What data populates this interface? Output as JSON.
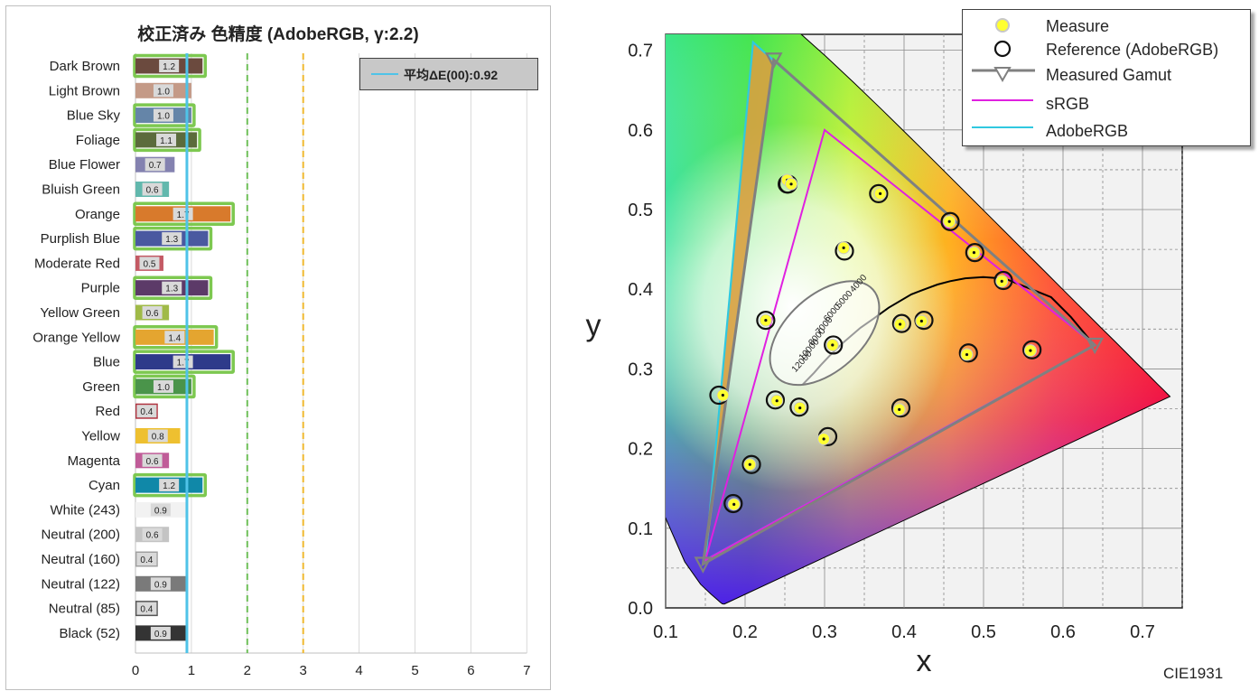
{
  "left_chart": {
    "title": "校正済み 色精度 (AdobeRGB, γ:2.2)",
    "avg_legend_label": "平均ΔE(00):0.92",
    "avg_line_color": "#4fc3e8",
    "threshold_green_color": "#70c05a",
    "threshold_orange_color": "#f0b830",
    "highlight_border_color": "#7dc850"
  },
  "right_chart": {
    "xlabel": "x",
    "ylabel": "y",
    "corner_label": "CIE1931",
    "legend": {
      "measure": "Measure",
      "reference": "Reference (AdobeRGB)",
      "gamut": "Measured Gamut",
      "srgb": "sRGB",
      "adobergb": "AdobeRGB"
    },
    "colors": {
      "srgb": "#e020e0",
      "adobergb": "#30c8e0",
      "gamut": "#808080",
      "measure": "#ffff30"
    },
    "cct_labels": [
      "4000",
      "5000",
      "6000",
      "7000",
      "8000",
      "10000",
      "12000"
    ]
  },
  "chart_data": [
    {
      "type": "bar",
      "title": "校正済み 色精度 (AdobeRGB, γ:2.2)",
      "orientation": "horizontal",
      "categories": [
        "Dark Brown",
        "Light Brown",
        "Blue Sky",
        "Foliage",
        "Blue Flower",
        "Bluish Green",
        "Orange",
        "Purplish Blue",
        "Moderate Red",
        "Purple",
        "Yellow Green",
        "Orange Yellow",
        "Blue",
        "Green",
        "Red",
        "Yellow",
        "Magenta",
        "Cyan",
        "White (243)",
        "Neutral (200)",
        "Neutral (160)",
        "Neutral (122)",
        "Neutral (85)",
        "Black (52)"
      ],
      "values": [
        1.2,
        1.0,
        1.0,
        1.1,
        0.7,
        0.6,
        1.7,
        1.3,
        0.5,
        1.3,
        0.6,
        1.4,
        1.7,
        1.0,
        0.4,
        0.8,
        0.6,
        1.2,
        0.9,
        0.6,
        0.4,
        0.9,
        0.4,
        0.9
      ],
      "bar_colors": [
        "#6b4a3e",
        "#c49a87",
        "#6585a8",
        "#5b6b3c",
        "#8482b0",
        "#62b8ad",
        "#d87a2c",
        "#4a59a0",
        "#c45a64",
        "#5c3a68",
        "#a0ba48",
        "#e4a530",
        "#2e3a8a",
        "#4a944a",
        "#b03440",
        "#eec030",
        "#c05c98",
        "#1088a8",
        "#f2f2f2",
        "#c4c4c4",
        "#a0a0a0",
        "#7a7a7a",
        "#555555",
        "#343434"
      ],
      "highlighted": [
        true,
        false,
        true,
        true,
        false,
        false,
        true,
        true,
        false,
        true,
        false,
        true,
        true,
        true,
        false,
        false,
        false,
        true,
        false,
        false,
        false,
        false,
        false,
        false
      ],
      "average": 0.92,
      "thresholds": [
        2,
        3
      ],
      "xlim": [
        0,
        7
      ],
      "xticks": [
        0,
        1,
        2,
        3,
        4,
        5,
        6,
        7
      ]
    },
    {
      "type": "scatter",
      "title": "",
      "xlabel": "x",
      "ylabel": "y",
      "xlim": [
        0.1,
        0.75
      ],
      "ylim": [
        0.0,
        0.72
      ],
      "xticks": [
        0.1,
        0.2,
        0.3,
        0.4,
        0.5,
        0.6,
        0.7
      ],
      "yticks": [
        0.0,
        0.1,
        0.2,
        0.3,
        0.4,
        0.5,
        0.6,
        0.7
      ],
      "series": [
        {
          "name": "Measure",
          "points": [
            [
              0.253,
              0.537
            ],
            [
              0.324,
              0.452
            ],
            [
              0.172,
              0.267
            ],
            [
              0.186,
              0.13
            ],
            [
              0.206,
              0.18
            ],
            [
              0.299,
              0.212
            ],
            [
              0.24,
              0.26
            ],
            [
              0.226,
              0.361
            ],
            [
              0.31,
              0.33
            ],
            [
              0.395,
              0.356
            ],
            [
              0.422,
              0.36
            ],
            [
              0.394,
              0.249
            ],
            [
              0.269,
              0.251
            ],
            [
              0.258,
              0.532
            ],
            [
              0.37,
              0.52
            ],
            [
              0.457,
              0.485
            ],
            [
              0.488,
              0.446
            ],
            [
              0.523,
              0.41
            ],
            [
              0.479,
              0.318
            ],
            [
              0.559,
              0.323
            ]
          ]
        },
        {
          "name": "Reference (AdobeRGB)",
          "points": [
            [
              0.254,
              0.532
            ],
            [
              0.325,
              0.448
            ],
            [
              0.167,
              0.267
            ],
            [
              0.185,
              0.131
            ],
            [
              0.208,
              0.18
            ],
            [
              0.304,
              0.215
            ],
            [
              0.238,
              0.261
            ],
            [
              0.226,
              0.361
            ],
            [
              0.311,
              0.33
            ],
            [
              0.397,
              0.357
            ],
            [
              0.425,
              0.361
            ],
            [
              0.396,
              0.251
            ],
            [
              0.268,
              0.252
            ],
            [
              0.253,
              0.532
            ],
            [
              0.368,
              0.52
            ],
            [
              0.458,
              0.485
            ],
            [
              0.489,
              0.446
            ],
            [
              0.525,
              0.411
            ],
            [
              0.481,
              0.32
            ],
            [
              0.561,
              0.324
            ]
          ]
        },
        {
          "name": "Measured Gamut",
          "points": [
            [
              0.64,
              0.33
            ],
            [
              0.236,
              0.688
            ],
            [
              0.147,
              0.055
            ]
          ]
        },
        {
          "name": "sRGB",
          "points": [
            [
              0.64,
              0.33
            ],
            [
              0.3,
              0.6
            ],
            [
              0.15,
              0.06
            ]
          ]
        },
        {
          "name": "AdobeRGB",
          "points": [
            [
              0.64,
              0.33
            ],
            [
              0.21,
              0.71
            ],
            [
              0.15,
              0.06
            ]
          ]
        }
      ]
    }
  ]
}
